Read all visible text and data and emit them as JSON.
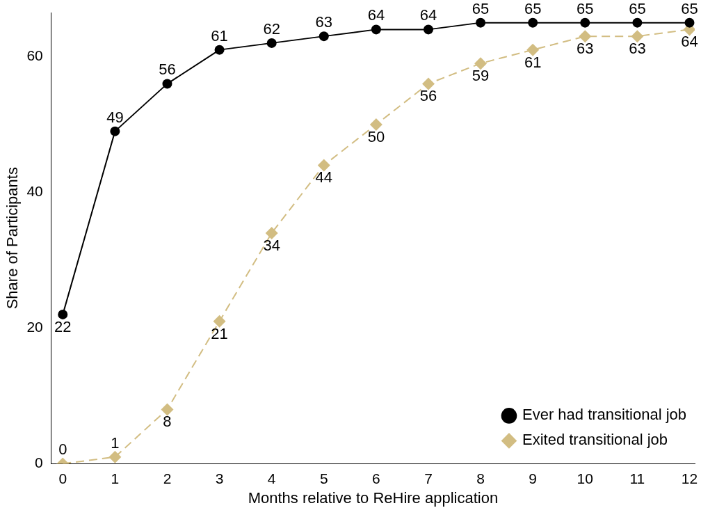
{
  "chart_data": {
    "type": "line",
    "xlabel": "Months relative to ReHire application",
    "ylabel": "Share of Participants",
    "x": [
      0,
      1,
      2,
      3,
      4,
      5,
      6,
      7,
      8,
      9,
      10,
      11,
      12
    ],
    "series": [
      {
        "name": "Ever had transitional job",
        "color": "#000000",
        "marker": "circle",
        "line_style": "solid",
        "values": [
          22,
          49,
          56,
          61,
          62,
          63,
          64,
          64,
          65,
          65,
          65,
          65,
          65
        ]
      },
      {
        "name": "Exited transitional job",
        "color": "#d2bd82",
        "marker": "diamond",
        "line_style": "dashed",
        "values": [
          0,
          1,
          8,
          21,
          34,
          44,
          50,
          56,
          59,
          61,
          63,
          63,
          64
        ]
      }
    ],
    "xlim": [
      -0.22,
      12.1
    ],
    "xticks": [
      0,
      1,
      2,
      3,
      4,
      5,
      6,
      7,
      8,
      9,
      10,
      11,
      12
    ],
    "ylim": [
      0,
      66.5
    ],
    "yticks": [
      0,
      20,
      40,
      60
    ],
    "grid": false,
    "legend": "bottom right",
    "data_labels": true
  }
}
